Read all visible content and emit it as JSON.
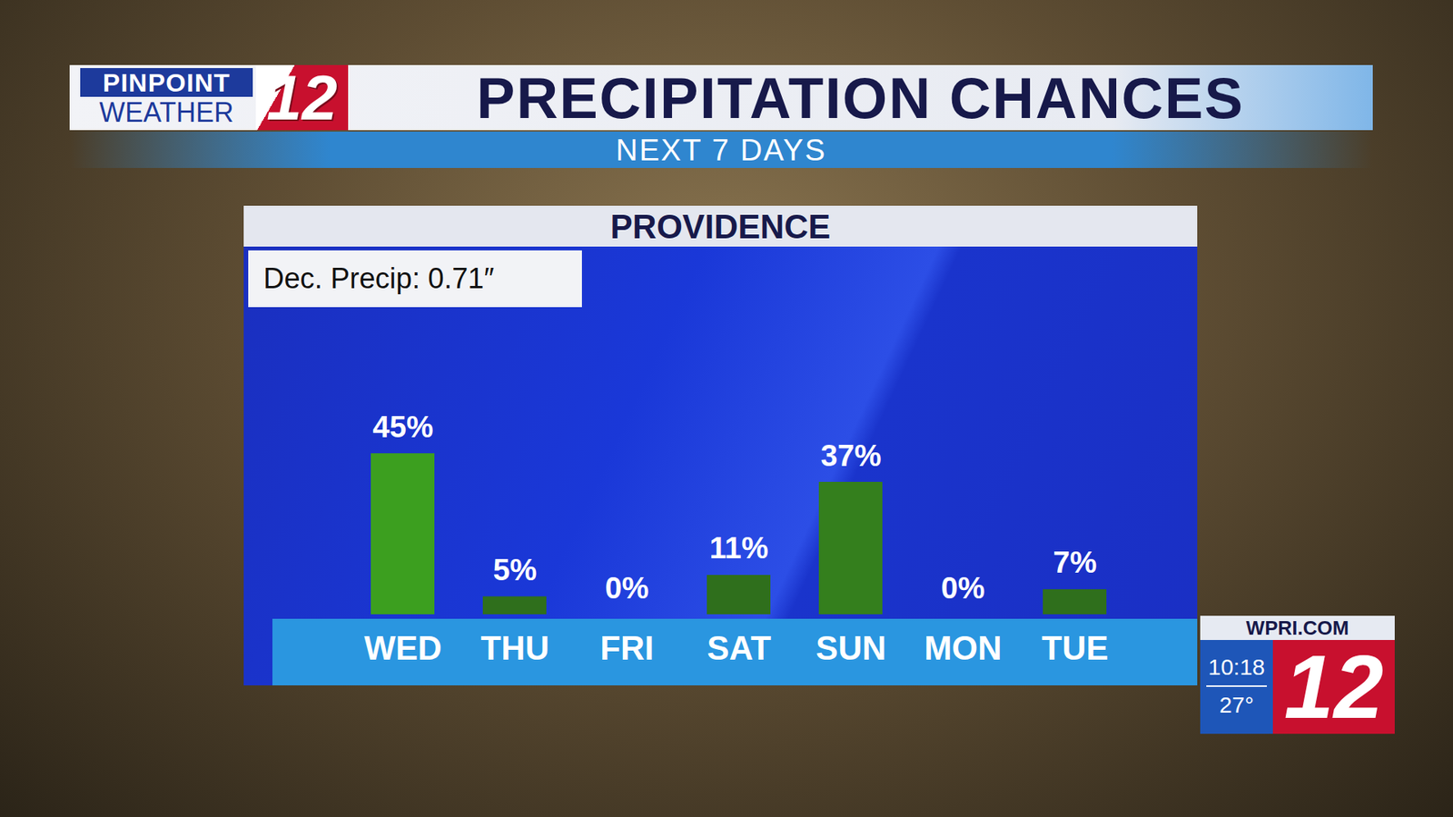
{
  "header": {
    "title": "PRECIPITATION CHANCES",
    "subtitle": "NEXT 7 DAYS"
  },
  "logo": {
    "top": "PINPOINT",
    "bottom": "WEATHER",
    "channel": "12"
  },
  "badge": {
    "website": "WPRI.COM",
    "time": "10:18",
    "temperature": "27°",
    "channel": "12"
  },
  "chart_data": {
    "type": "bar",
    "title": "PROVIDENCE",
    "annotations": [
      "Dec. Precip: 0.71″"
    ],
    "categories": [
      "WED",
      "THU",
      "FRI",
      "SAT",
      "SUN",
      "MON",
      "TUE"
    ],
    "values": [
      45,
      5,
      0,
      11,
      37,
      0,
      7
    ],
    "value_labels": [
      "45%",
      "5%",
      "0%",
      "11%",
      "37%",
      "0%",
      "7%"
    ],
    "colors": [
      "#3c9f1f",
      "#2f6f1c",
      "#2f6f1c",
      "#2f6f1c",
      "#347f1d",
      "#2f6f1c",
      "#2f6f1c"
    ],
    "ylim": [
      0,
      85
    ],
    "data_labels": true,
    "tick_labels": "x",
    "grid": false
  }
}
